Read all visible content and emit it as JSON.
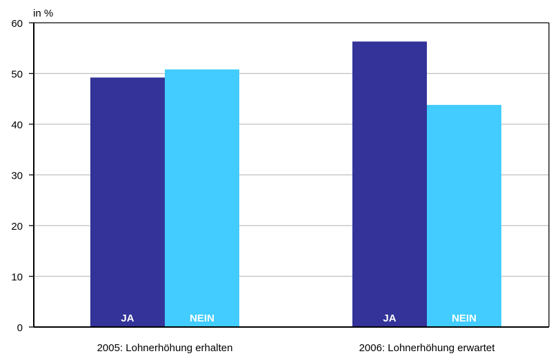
{
  "chart_data": {
    "type": "bar",
    "ylabel": "in %",
    "ylim": [
      0,
      60
    ],
    "yticks": [
      "0",
      "10",
      "20",
      "30",
      "40",
      "50",
      "60"
    ],
    "grid": true,
    "categories": [
      "2005: Lohnerhöhung erhalten",
      "2006: Lohnerhöhung erwartet"
    ],
    "series": [
      {
        "name": "JA",
        "color": "#333399",
        "values": [
          49.2,
          56.3
        ]
      },
      {
        "name": "NEIN",
        "color": "#42CCFF",
        "values": [
          50.8,
          43.8
        ]
      }
    ]
  }
}
